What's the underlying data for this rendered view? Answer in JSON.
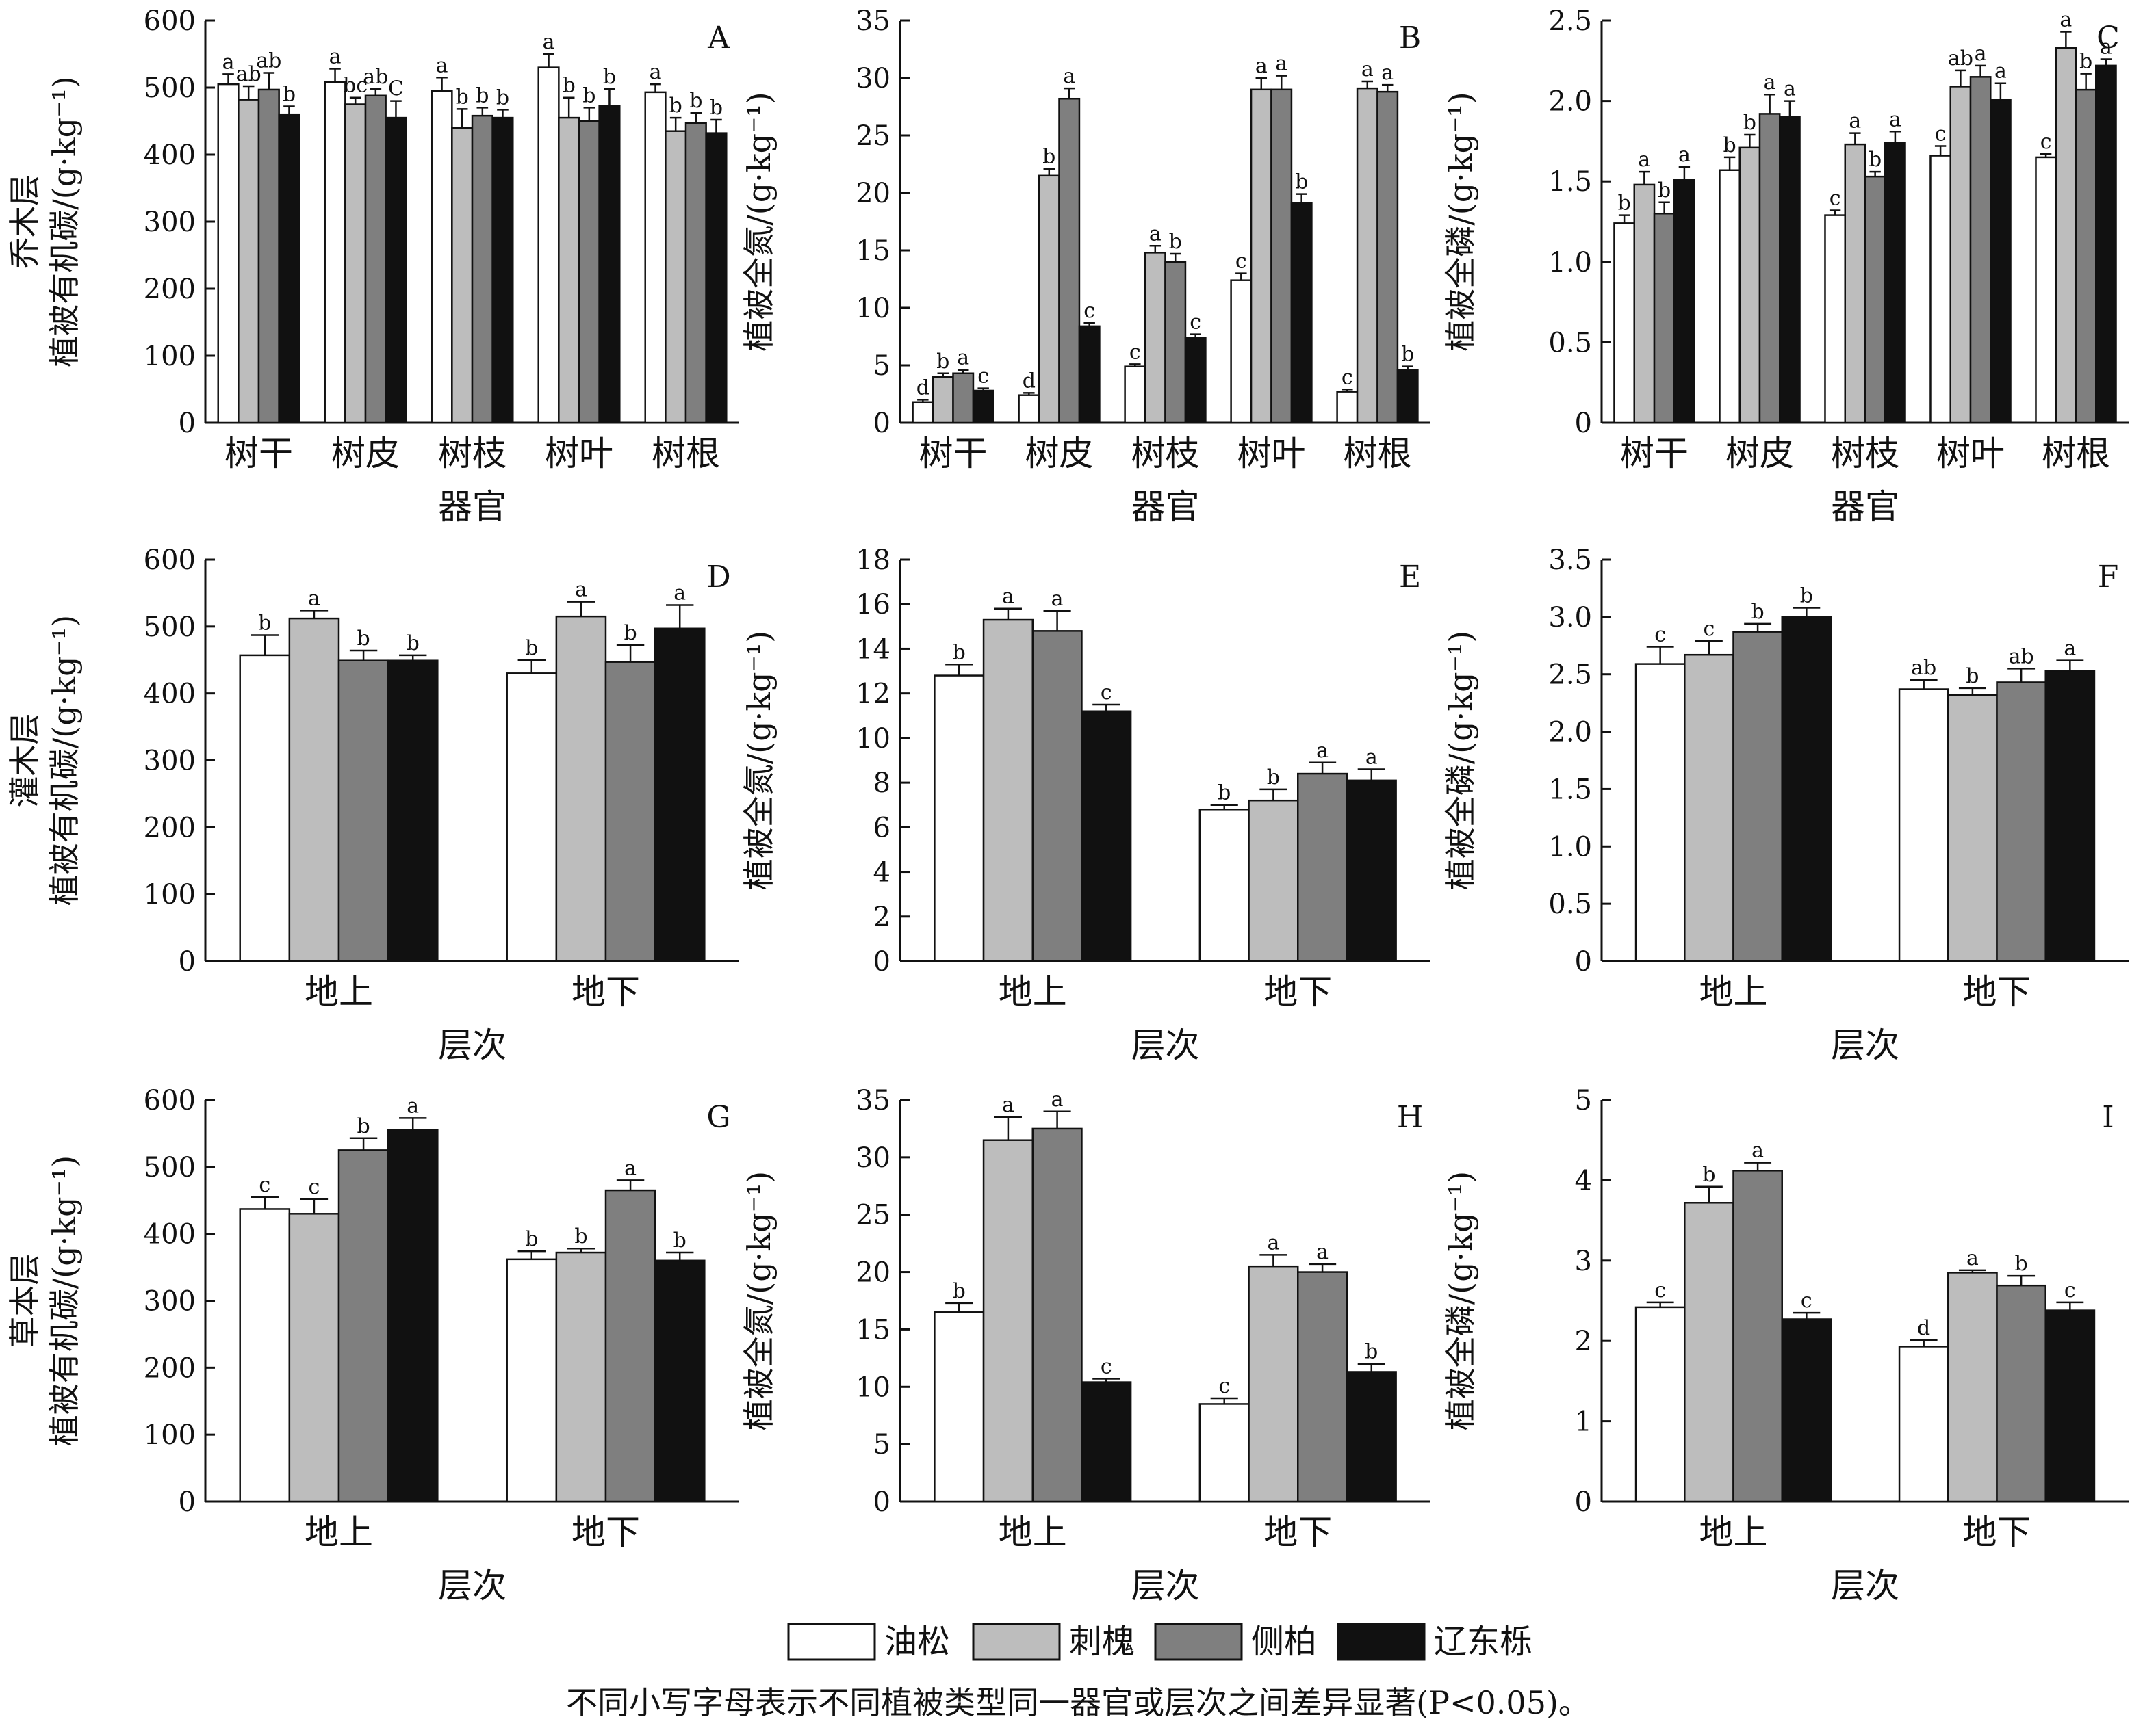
{
  "chart_data": [
    {
      "panel": "A",
      "row_label": "乔木层",
      "type": "bar",
      "ylabel": "植被有机碳/(g·kg⁻¹)",
      "xlabel": "器官",
      "ylim": [
        0,
        600
      ],
      "yticks": [
        "0",
        "100",
        "200",
        "300",
        "400",
        "500",
        "600"
      ],
      "categories": [
        "树干",
        "树皮",
        "树枝",
        "树叶",
        "树根"
      ],
      "values": [
        [
          505,
          482,
          497,
          460
        ],
        [
          508,
          475,
          488,
          455
        ],
        [
          495,
          440,
          458,
          455
        ],
        [
          530,
          455,
          450,
          473
        ],
        [
          493,
          435,
          447,
          432
        ]
      ],
      "errors": [
        [
          15,
          20,
          25,
          12
        ],
        [
          20,
          10,
          10,
          25
        ],
        [
          20,
          28,
          12,
          12
        ],
        [
          20,
          30,
          20,
          25
        ],
        [
          12,
          20,
          15,
          20
        ]
      ],
      "labels": [
        [
          "a",
          "ab",
          "ab",
          "b"
        ],
        [
          "a",
          "bc",
          "ab",
          "C"
        ],
        [
          "a",
          "b",
          "b",
          "b"
        ],
        [
          "a",
          "b",
          "b",
          "b"
        ],
        [
          "a",
          "b",
          "b",
          "b"
        ]
      ]
    },
    {
      "panel": "B",
      "row_label": "",
      "type": "bar",
      "ylabel": "植被全氮/(g·kg⁻¹)",
      "xlabel": "器官",
      "ylim": [
        0,
        35
      ],
      "yticks": [
        "0",
        "5",
        "10",
        "15",
        "20",
        "25",
        "30",
        "35"
      ],
      "categories": [
        "树干",
        "树皮",
        "树枝",
        "树叶",
        "树根"
      ],
      "values": [
        [
          1.8,
          4.0,
          4.3,
          2.8
        ],
        [
          2.4,
          21.5,
          28.2,
          8.4
        ],
        [
          4.9,
          14.8,
          14.0,
          7.4
        ],
        [
          12.4,
          29.0,
          29.0,
          19.1
        ],
        [
          2.7,
          29.1,
          28.8,
          4.6
        ]
      ],
      "errors": [
        [
          0.2,
          0.3,
          0.3,
          0.2
        ],
        [
          0.2,
          0.6,
          0.9,
          0.3
        ],
        [
          0.2,
          0.6,
          0.7,
          0.3
        ],
        [
          0.6,
          1.0,
          1.2,
          0.8
        ],
        [
          0.2,
          0.6,
          0.6,
          0.3
        ]
      ],
      "labels": [
        [
          "d",
          "b",
          "a",
          "c"
        ],
        [
          "d",
          "b",
          "a",
          "c"
        ],
        [
          "c",
          "a",
          "b",
          "c"
        ],
        [
          "c",
          "a",
          "a",
          "b"
        ],
        [
          "c",
          "a",
          "a",
          "b"
        ]
      ]
    },
    {
      "panel": "C",
      "row_label": "",
      "type": "bar",
      "ylabel": "植被全磷/(g·kg⁻¹)",
      "xlabel": "器官",
      "ylim": [
        0,
        2.5
      ],
      "yticks": [
        "0",
        "0.5",
        "1.0",
        "1.5",
        "2.0",
        "2.5"
      ],
      "categories": [
        "树干",
        "树皮",
        "树枝",
        "树叶",
        "树根"
      ],
      "values": [
        [
          1.24,
          1.48,
          1.3,
          1.51
        ],
        [
          1.57,
          1.71,
          1.92,
          1.9
        ],
        [
          1.29,
          1.73,
          1.53,
          1.74
        ],
        [
          1.66,
          2.09,
          2.15,
          2.01
        ],
        [
          1.65,
          2.33,
          2.07,
          2.22
        ]
      ],
      "errors": [
        [
          0.05,
          0.08,
          0.07,
          0.08
        ],
        [
          0.08,
          0.08,
          0.12,
          0.1
        ],
        [
          0.03,
          0.07,
          0.03,
          0.07
        ],
        [
          0.06,
          0.1,
          0.07,
          0.1
        ],
        [
          0.02,
          0.1,
          0.1,
          0.04
        ]
      ],
      "labels": [
        [
          "b",
          "a",
          "b",
          "a"
        ],
        [
          "b",
          "b",
          "a",
          "a"
        ],
        [
          "c",
          "a",
          "b",
          "a"
        ],
        [
          "c",
          "ab",
          "a",
          "a"
        ],
        [
          "c",
          "a",
          "b",
          "a"
        ]
      ]
    },
    {
      "panel": "D",
      "row_label": "灌木层",
      "type": "bar",
      "ylabel": "植被有机碳/(g·kg⁻¹)",
      "xlabel": "层次",
      "ylim": [
        0,
        600
      ],
      "yticks": [
        "0",
        "100",
        "200",
        "300",
        "400",
        "500",
        "600"
      ],
      "categories": [
        "地上",
        "地下"
      ],
      "values": [
        [
          457,
          512,
          449,
          449
        ],
        [
          430,
          515,
          447,
          497
        ]
      ],
      "errors": [
        [
          30,
          12,
          15,
          8
        ],
        [
          20,
          22,
          25,
          35
        ]
      ],
      "labels": [
        [
          "b",
          "a",
          "b",
          "b"
        ],
        [
          "b",
          "a",
          "b",
          "a"
        ]
      ]
    },
    {
      "panel": "E",
      "row_label": "",
      "type": "bar",
      "ylabel": "植被全氮/(g·kg⁻¹)",
      "xlabel": "层次",
      "ylim": [
        0,
        18
      ],
      "yticks": [
        "0",
        "2",
        "4",
        "6",
        "8",
        "10",
        "12",
        "14",
        "16",
        "18"
      ],
      "categories": [
        "地上",
        "地下"
      ],
      "values": [
        [
          12.8,
          15.3,
          14.8,
          11.2
        ],
        [
          6.8,
          7.2,
          8.4,
          8.1
        ]
      ],
      "errors": [
        [
          0.5,
          0.5,
          0.9,
          0.3
        ],
        [
          0.2,
          0.5,
          0.5,
          0.5
        ]
      ],
      "labels": [
        [
          "b",
          "a",
          "a",
          "c"
        ],
        [
          "b",
          "b",
          "a",
          "a"
        ]
      ]
    },
    {
      "panel": "F",
      "row_label": "",
      "type": "bar",
      "ylabel": "植被全磷/(g·kg⁻¹)",
      "xlabel": "层次",
      "ylim": [
        0,
        3.5
      ],
      "yticks": [
        "0",
        "0.5",
        "1.0",
        "1.5",
        "2.0",
        "2.5",
        "3.0",
        "3.5"
      ],
      "categories": [
        "地上",
        "地下"
      ],
      "values": [
        [
          2.59,
          2.67,
          2.87,
          3.0
        ],
        [
          2.37,
          2.32,
          2.43,
          2.53
        ]
      ],
      "errors": [
        [
          0.15,
          0.12,
          0.07,
          0.08
        ],
        [
          0.08,
          0.06,
          0.12,
          0.09
        ]
      ],
      "labels": [
        [
          "c",
          "c",
          "b",
          "b"
        ],
        [
          "ab",
          "b",
          "ab",
          "a"
        ]
      ]
    },
    {
      "panel": "G",
      "row_label": "草本层",
      "type": "bar",
      "ylabel": "植被有机碳/(g·kg⁻¹)",
      "xlabel": "层次",
      "ylim": [
        0,
        600
      ],
      "yticks": [
        "0",
        "100",
        "200",
        "300",
        "400",
        "500",
        "600"
      ],
      "categories": [
        "地上",
        "地下"
      ],
      "values": [
        [
          437,
          430,
          525,
          555
        ],
        [
          362,
          372,
          465,
          360
        ]
      ],
      "errors": [
        [
          18,
          22,
          18,
          18
        ],
        [
          12,
          6,
          15,
          12
        ]
      ],
      "labels": [
        [
          "c",
          "c",
          "b",
          "a"
        ],
        [
          "b",
          "b",
          "a",
          "b"
        ]
      ]
    },
    {
      "panel": "H",
      "row_label": "",
      "type": "bar",
      "ylabel": "植被全氮/(g·kg⁻¹)",
      "xlabel": "层次",
      "ylim": [
        0,
        35
      ],
      "yticks": [
        "0",
        "5",
        "10",
        "15",
        "20",
        "25",
        "30",
        "35"
      ],
      "categories": [
        "地上",
        "地下"
      ],
      "values": [
        [
          16.5,
          31.5,
          32.5,
          10.4
        ],
        [
          8.5,
          20.5,
          20.0,
          11.3
        ]
      ],
      "errors": [
        [
          0.8,
          2.0,
          1.5,
          0.3
        ],
        [
          0.5,
          1.0,
          0.7,
          0.7
        ]
      ],
      "labels": [
        [
          "b",
          "a",
          "a",
          "c"
        ],
        [
          "c",
          "a",
          "a",
          "b"
        ]
      ]
    },
    {
      "panel": "I",
      "row_label": "",
      "type": "bar",
      "ylabel": "植被全磷/(g·kg⁻¹)",
      "xlabel": "层次",
      "ylim": [
        0,
        5
      ],
      "yticks": [
        "0",
        "1",
        "2",
        "3",
        "4",
        "5"
      ],
      "categories": [
        "地上",
        "地下"
      ],
      "values": [
        [
          2.42,
          3.72,
          4.12,
          2.27
        ],
        [
          1.93,
          2.85,
          2.69,
          2.38
        ]
      ],
      "errors": [
        [
          0.06,
          0.2,
          0.1,
          0.08
        ],
        [
          0.08,
          0.03,
          0.12,
          0.1
        ]
      ],
      "labels": [
        [
          "c",
          "b",
          "a",
          "c"
        ],
        [
          "d",
          "a",
          "b",
          "c"
        ]
      ]
    }
  ],
  "series": [
    {
      "name": "油松",
      "color": "#ffffff"
    },
    {
      "name": "刺槐",
      "color": "#bdbdbd"
    },
    {
      "name": "侧柏",
      "color": "#7f7f7f"
    },
    {
      "name": "辽东栎",
      "color": "#111111"
    }
  ],
  "legend_placement": "bottom-center",
  "footnote": "不同小写字母表示不同植被类型同一器官或层次之间差异显著(P<0.05)。"
}
